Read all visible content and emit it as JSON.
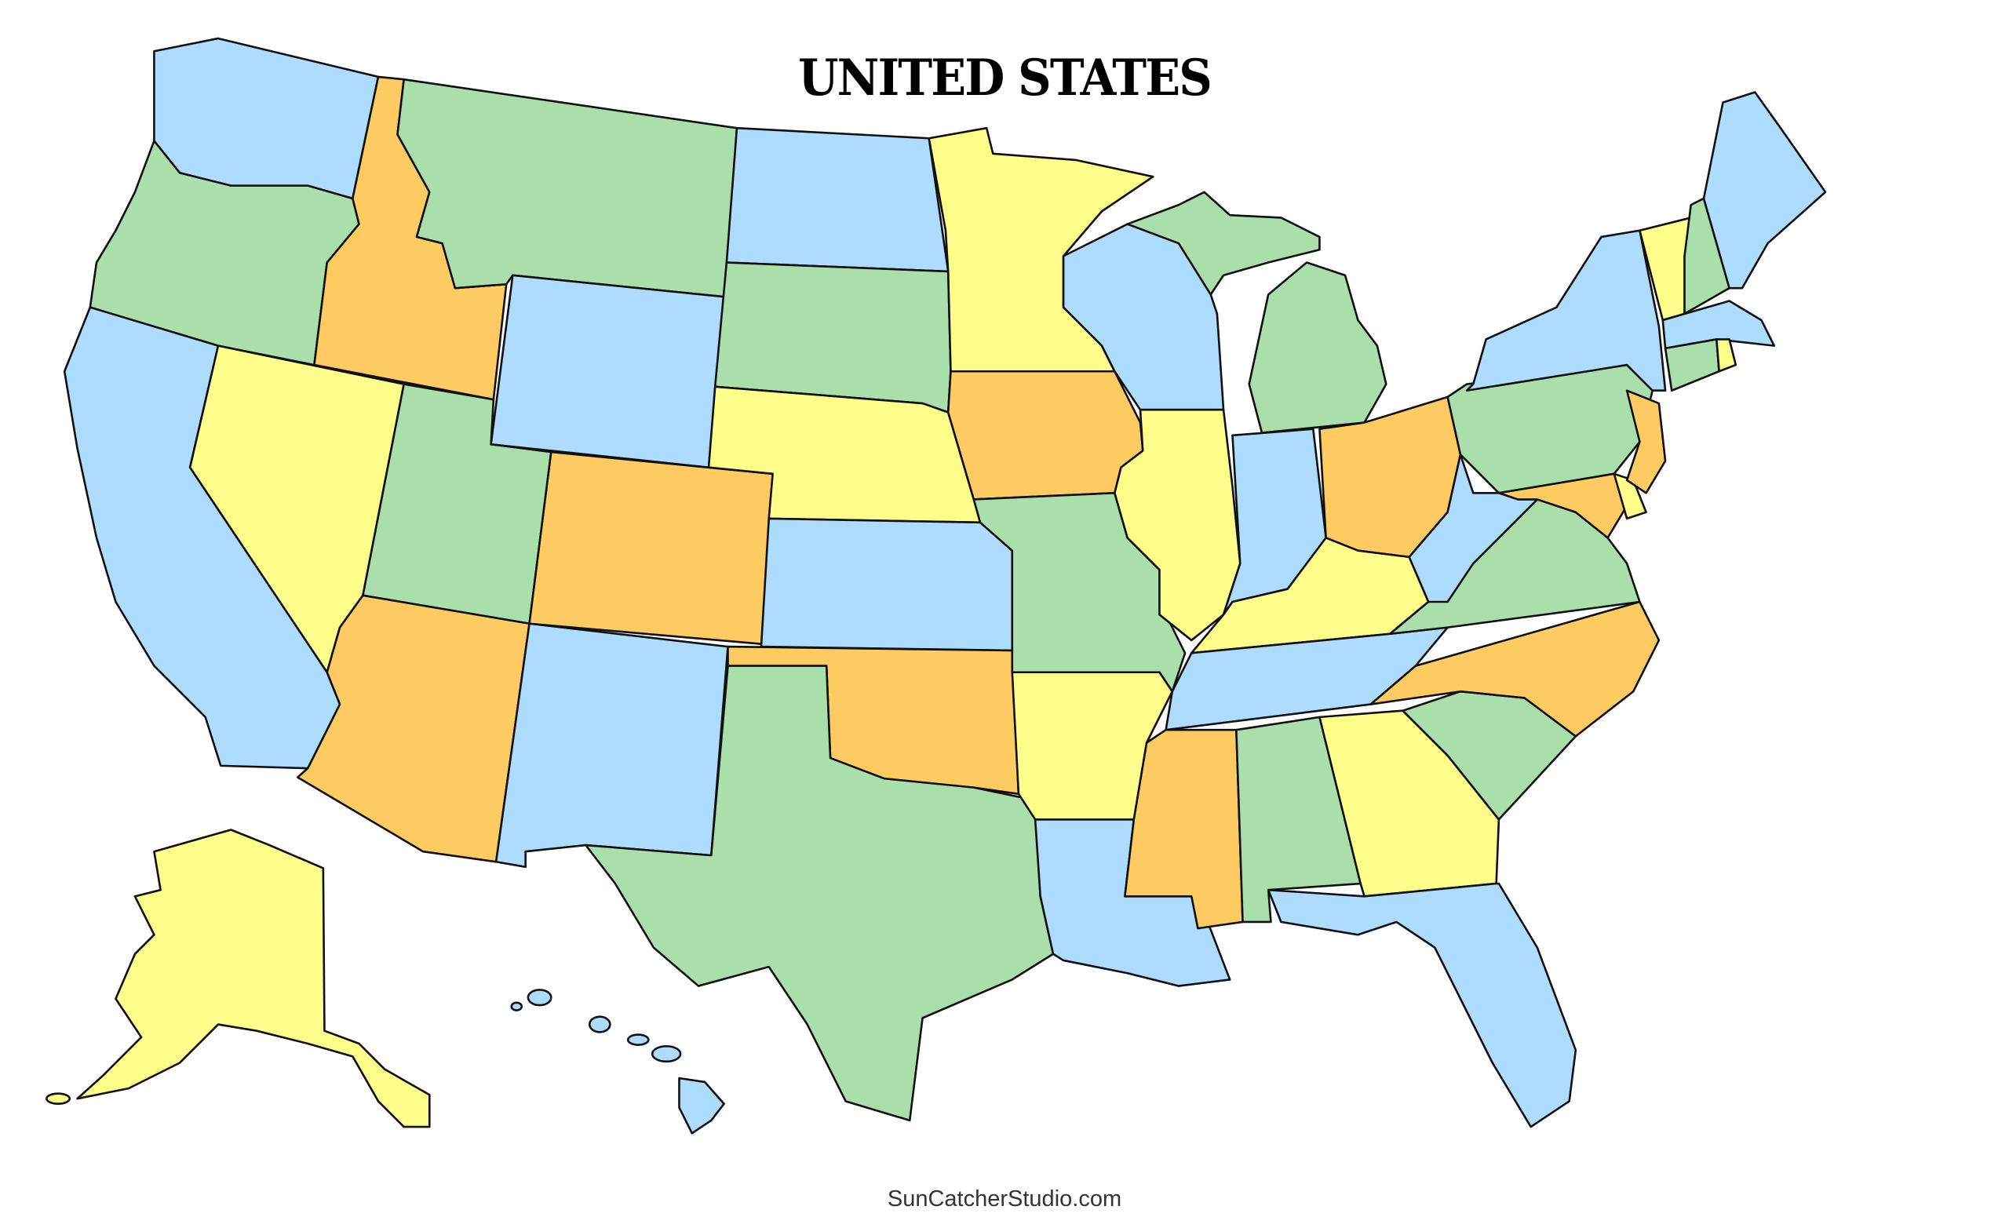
{
  "title": "UNITED STATES",
  "credit": "SunCatcherStudio.com",
  "palette": {
    "blue": "#addcfe",
    "green": "#aadfab",
    "yellow": "#fffe8a",
    "orange": "#fecb62",
    "outline": "#111111"
  }
}
